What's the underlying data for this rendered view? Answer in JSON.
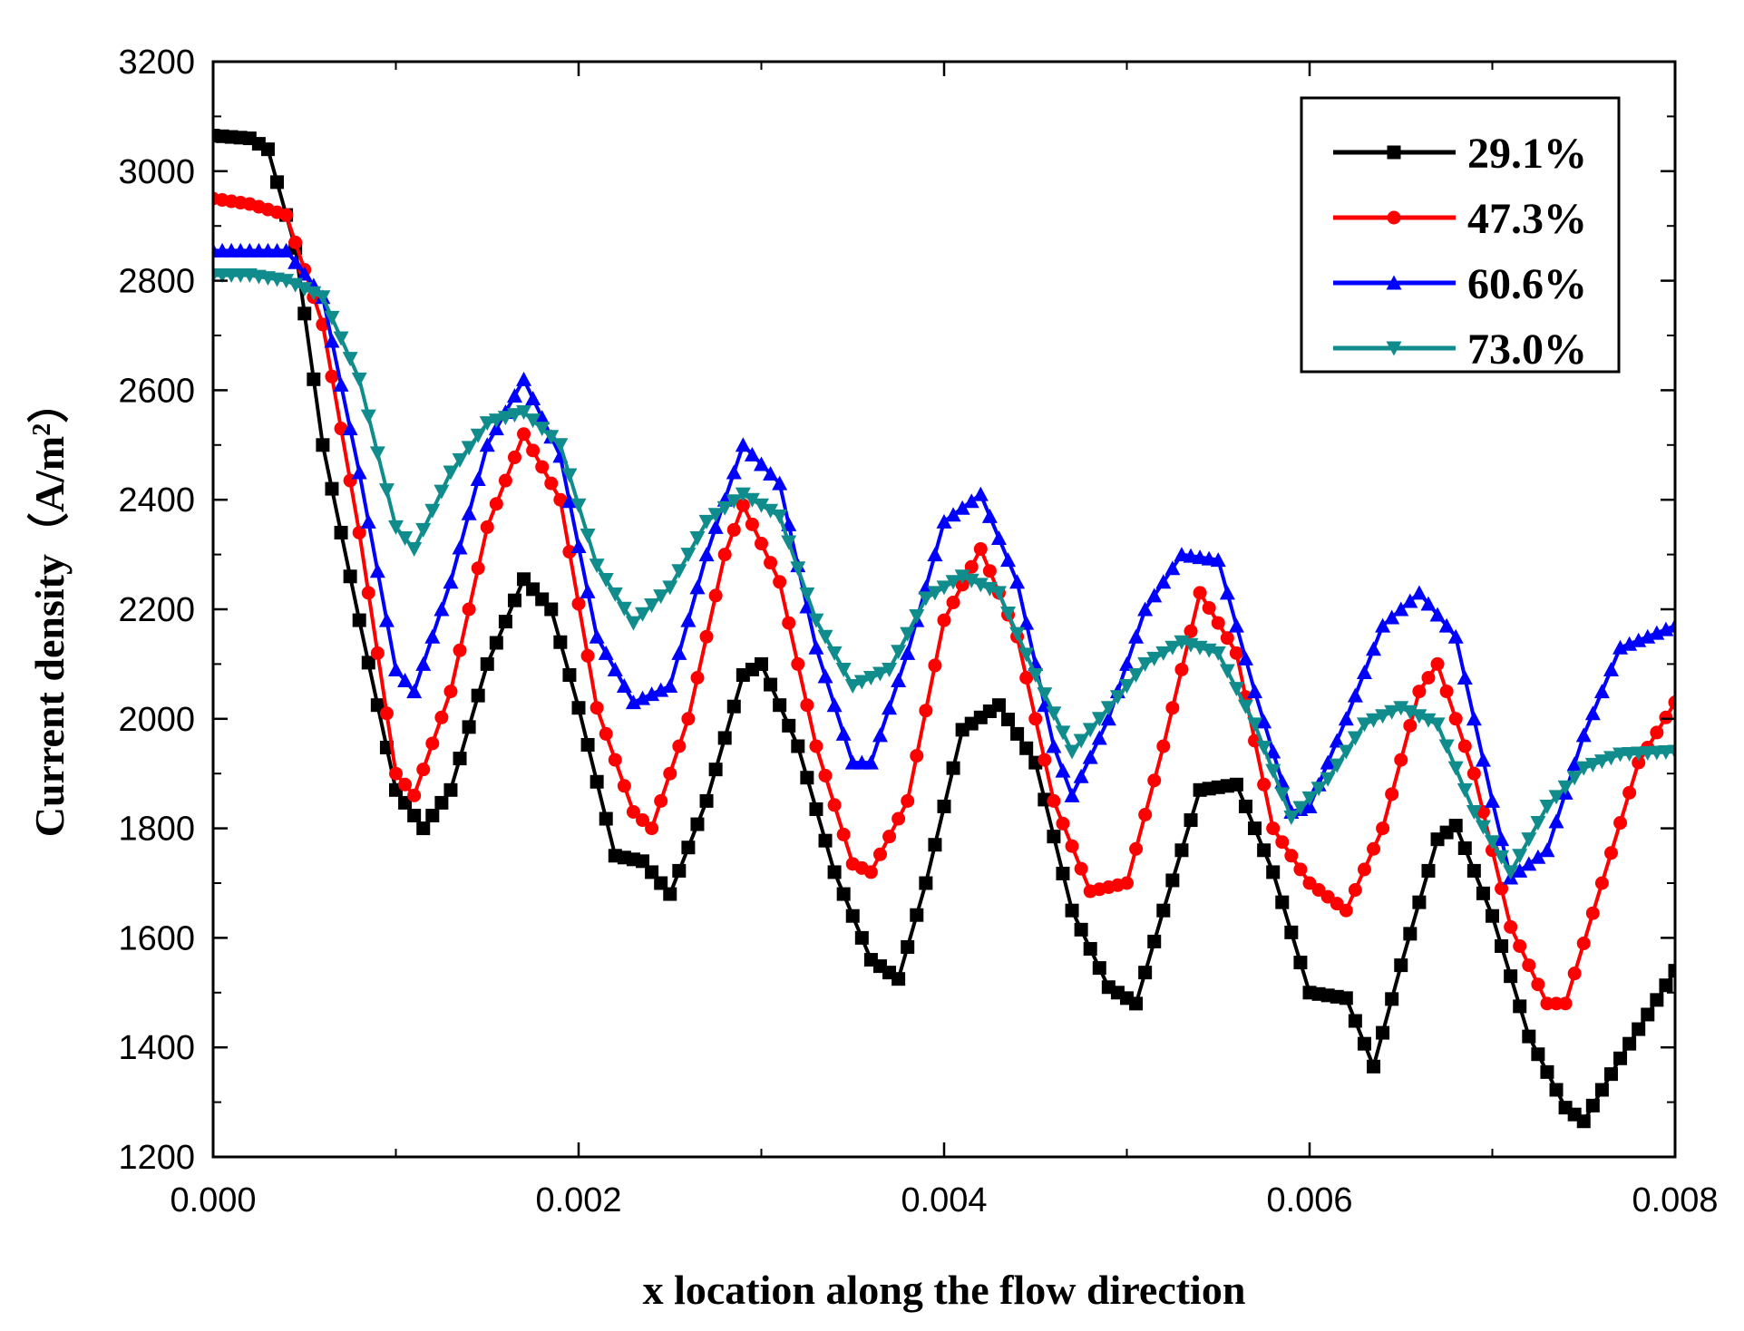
{
  "chart_data": {
    "type": "line",
    "title": "",
    "xlabel": "x location along the flow direction",
    "ylabel_main": "Current density",
    "ylabel_unit_prefix": "（A/m",
    "ylabel_unit_sup": "2",
    "ylabel_unit_suffix": "）",
    "xlim": [
      0.0,
      0.008
    ],
    "ylim": [
      1200,
      3200
    ],
    "xticks": [
      0.0,
      0.002,
      0.004,
      0.006,
      0.008
    ],
    "xtick_labels": [
      "0.000",
      "0.002",
      "0.004",
      "0.006",
      "0.008"
    ],
    "yticks": [
      1200,
      1400,
      1600,
      1800,
      2000,
      2200,
      2400,
      2600,
      2800,
      3000,
      3200
    ],
    "ytick_labels": [
      "1200",
      "1400",
      "1600",
      "1800",
      "2000",
      "2200",
      "2400",
      "2600",
      "2800",
      "3000",
      "3200"
    ],
    "grid": false,
    "legend_position": "top-right",
    "series": [
      {
        "name": "29.1%",
        "color": "#000000",
        "marker": "square",
        "points": [
          [
            0.0,
            3065
          ],
          [
            0.0002,
            3060
          ],
          [
            0.0003,
            3040
          ],
          [
            0.00045,
            2860
          ],
          [
            0.0006,
            2500
          ],
          [
            0.0008,
            2180
          ],
          [
            0.001,
            1870
          ],
          [
            0.00115,
            1800
          ],
          [
            0.0013,
            1870
          ],
          [
            0.0015,
            2100
          ],
          [
            0.0017,
            2255
          ],
          [
            0.00185,
            2200
          ],
          [
            0.002,
            2020
          ],
          [
            0.0022,
            1750
          ],
          [
            0.00235,
            1740
          ],
          [
            0.0025,
            1680
          ],
          [
            0.0027,
            1850
          ],
          [
            0.0029,
            2080
          ],
          [
            0.003,
            2100
          ],
          [
            0.0032,
            1950
          ],
          [
            0.0034,
            1720
          ],
          [
            0.0036,
            1560
          ],
          [
            0.00375,
            1525
          ],
          [
            0.0039,
            1700
          ],
          [
            0.0041,
            1980
          ],
          [
            0.0043,
            2025
          ],
          [
            0.0045,
            1920
          ],
          [
            0.0047,
            1650
          ],
          [
            0.0049,
            1510
          ],
          [
            0.00505,
            1480
          ],
          [
            0.0052,
            1650
          ],
          [
            0.0054,
            1870
          ],
          [
            0.0056,
            1880
          ],
          [
            0.0058,
            1720
          ],
          [
            0.006,
            1500
          ],
          [
            0.0062,
            1490
          ],
          [
            0.00635,
            1365
          ],
          [
            0.0065,
            1550
          ],
          [
            0.0067,
            1780
          ],
          [
            0.0068,
            1805
          ],
          [
            0.007,
            1640
          ],
          [
            0.0072,
            1420
          ],
          [
            0.0074,
            1290
          ],
          [
            0.0075,
            1265
          ],
          [
            0.0077,
            1380
          ],
          [
            0.008,
            1540
          ]
        ]
      },
      {
        "name": "47.3%",
        "color": "#ff0000",
        "marker": "circle",
        "points": [
          [
            0.0,
            2950
          ],
          [
            0.0002,
            2940
          ],
          [
            0.0004,
            2920
          ],
          [
            0.0006,
            2720
          ],
          [
            0.0008,
            2340
          ],
          [
            0.001,
            1900
          ],
          [
            0.0011,
            1860
          ],
          [
            0.0013,
            2050
          ],
          [
            0.0015,
            2350
          ],
          [
            0.0017,
            2520
          ],
          [
            0.0019,
            2400
          ],
          [
            0.0021,
            2020
          ],
          [
            0.0023,
            1830
          ],
          [
            0.0024,
            1800
          ],
          [
            0.0026,
            2000
          ],
          [
            0.0028,
            2300
          ],
          [
            0.0029,
            2390
          ],
          [
            0.0031,
            2250
          ],
          [
            0.0033,
            1950
          ],
          [
            0.0035,
            1735
          ],
          [
            0.0036,
            1720
          ],
          [
            0.0038,
            1850
          ],
          [
            0.004,
            2180
          ],
          [
            0.0042,
            2310
          ],
          [
            0.0044,
            2150
          ],
          [
            0.0046,
            1850
          ],
          [
            0.0048,
            1685
          ],
          [
            0.005,
            1700
          ],
          [
            0.0052,
            1950
          ],
          [
            0.0054,
            2230
          ],
          [
            0.0056,
            2120
          ],
          [
            0.0058,
            1800
          ],
          [
            0.006,
            1700
          ],
          [
            0.0062,
            1650
          ],
          [
            0.0064,
            1800
          ],
          [
            0.0066,
            2050
          ],
          [
            0.0067,
            2100
          ],
          [
            0.0069,
            1900
          ],
          [
            0.0071,
            1620
          ],
          [
            0.0073,
            1480
          ],
          [
            0.0074,
            1480
          ],
          [
            0.0076,
            1700
          ],
          [
            0.0078,
            1920
          ],
          [
            0.008,
            2030
          ]
        ]
      },
      {
        "name": "60.6%",
        "color": "#0000ff",
        "marker": "triangle-up",
        "points": [
          [
            0.0,
            2855
          ],
          [
            0.0002,
            2855
          ],
          [
            0.0004,
            2855
          ],
          [
            0.0006,
            2770
          ],
          [
            0.0008,
            2450
          ],
          [
            0.001,
            2090
          ],
          [
            0.0011,
            2050
          ],
          [
            0.0013,
            2250
          ],
          [
            0.0015,
            2500
          ],
          [
            0.0017,
            2620
          ],
          [
            0.0019,
            2480
          ],
          [
            0.0021,
            2150
          ],
          [
            0.0023,
            2030
          ],
          [
            0.0025,
            2060
          ],
          [
            0.0027,
            2300
          ],
          [
            0.0029,
            2500
          ],
          [
            0.0031,
            2430
          ],
          [
            0.0033,
            2130
          ],
          [
            0.0035,
            1920
          ],
          [
            0.0036,
            1920
          ],
          [
            0.0038,
            2120
          ],
          [
            0.004,
            2360
          ],
          [
            0.0042,
            2410
          ],
          [
            0.0044,
            2250
          ],
          [
            0.0046,
            1950
          ],
          [
            0.0047,
            1860
          ],
          [
            0.0049,
            2000
          ],
          [
            0.0051,
            2200
          ],
          [
            0.0053,
            2300
          ],
          [
            0.0055,
            2290
          ],
          [
            0.0057,
            2050
          ],
          [
            0.0059,
            1830
          ],
          [
            0.006,
            1840
          ],
          [
            0.0062,
            2000
          ],
          [
            0.0064,
            2170
          ],
          [
            0.0066,
            2230
          ],
          [
            0.0068,
            2150
          ],
          [
            0.007,
            1850
          ],
          [
            0.0071,
            1710
          ],
          [
            0.0073,
            1760
          ],
          [
            0.0075,
            1970
          ],
          [
            0.0077,
            2130
          ],
          [
            0.008,
            2170
          ]
        ]
      },
      {
        "name": "73.0%",
        "color": "#118c8c",
        "marker": "triangle-down",
        "points": [
          [
            0.0,
            2810
          ],
          [
            0.0002,
            2810
          ],
          [
            0.0004,
            2800
          ],
          [
            0.0006,
            2770
          ],
          [
            0.0008,
            2620
          ],
          [
            0.001,
            2350
          ],
          [
            0.0011,
            2310
          ],
          [
            0.0013,
            2450
          ],
          [
            0.0015,
            2540
          ],
          [
            0.0017,
            2560
          ],
          [
            0.0019,
            2500
          ],
          [
            0.0021,
            2280
          ],
          [
            0.0023,
            2175
          ],
          [
            0.0025,
            2240
          ],
          [
            0.0027,
            2360
          ],
          [
            0.0029,
            2410
          ],
          [
            0.0031,
            2370
          ],
          [
            0.0033,
            2180
          ],
          [
            0.0035,
            2060
          ],
          [
            0.0037,
            2090
          ],
          [
            0.0039,
            2220
          ],
          [
            0.0041,
            2260
          ],
          [
            0.0043,
            2230
          ],
          [
            0.0045,
            2080
          ],
          [
            0.0047,
            1940
          ],
          [
            0.0049,
            2020
          ],
          [
            0.0051,
            2100
          ],
          [
            0.0053,
            2140
          ],
          [
            0.0055,
            2120
          ],
          [
            0.0057,
            1990
          ],
          [
            0.0059,
            1820
          ],
          [
            0.0061,
            1890
          ],
          [
            0.0063,
            1990
          ],
          [
            0.0065,
            2020
          ],
          [
            0.0067,
            1990
          ],
          [
            0.0069,
            1830
          ],
          [
            0.0071,
            1720
          ],
          [
            0.0073,
            1840
          ],
          [
            0.0075,
            1910
          ],
          [
            0.0077,
            1935
          ],
          [
            0.008,
            1940
          ]
        ]
      }
    ]
  }
}
